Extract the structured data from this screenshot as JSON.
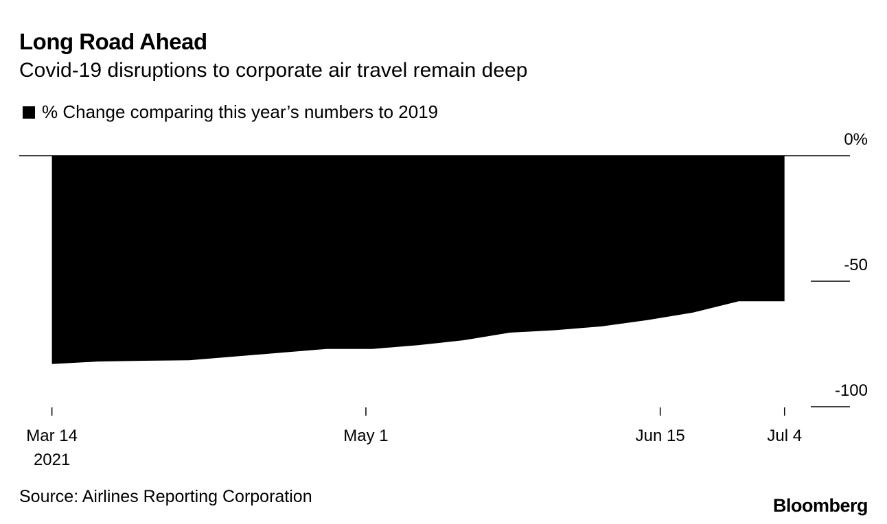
{
  "header": {
    "title": "Long Road Ahead",
    "subtitle": "Covid-19 disruptions to corporate air travel remain deep",
    "legend_label": "% Change comparing this year’s numbers to 2019"
  },
  "footer": {
    "source": "Source: Airlines Reporting Corporation",
    "brand": "Bloomberg"
  },
  "colors": {
    "fill": "#000000",
    "axis": "#000000",
    "background": "#ffffff"
  },
  "chart_data": {
    "type": "area",
    "title": "Long Road Ahead",
    "subtitle": "Covid-19 disruptions to corporate air travel remain deep",
    "series": [
      {
        "name": "% Change comparing this year’s numbers to 2019",
        "x": [
          "2021-03-14",
          "2021-03-21",
          "2021-03-28",
          "2021-04-04",
          "2021-04-11",
          "2021-04-18",
          "2021-04-25",
          "2021-05-02",
          "2021-05-09",
          "2021-05-16",
          "2021-05-23",
          "2021-05-30",
          "2021-06-06",
          "2021-06-13",
          "2021-06-20",
          "2021-06-27",
          "2021-07-04"
        ],
        "values": [
          -83,
          -82,
          -81.7,
          -81.5,
          -80,
          -78.5,
          -77,
          -77,
          -75.5,
          -73.5,
          -70.5,
          -69.5,
          -68,
          -65.5,
          -62.5,
          -58,
          -58
        ]
      }
    ],
    "x_ticks": [
      {
        "date": "2021-03-14",
        "label": "Mar 14",
        "sublabel": "2021"
      },
      {
        "date": "2021-05-01",
        "label": "May 1",
        "sublabel": ""
      },
      {
        "date": "2021-06-15",
        "label": "Jun 15",
        "sublabel": ""
      },
      {
        "date": "2021-07-04",
        "label": "Jul 4",
        "sublabel": ""
      }
    ],
    "y_ticks": [
      {
        "value": 0,
        "label": "0%"
      },
      {
        "value": -50,
        "label": "-50"
      },
      {
        "value": -100,
        "label": "-100"
      }
    ],
    "ylim": [
      -100,
      0
    ],
    "xlim": [
      "2021-03-09",
      "2021-07-14"
    ],
    "xlabel": "",
    "ylabel": "",
    "legend_position": "top-left"
  }
}
